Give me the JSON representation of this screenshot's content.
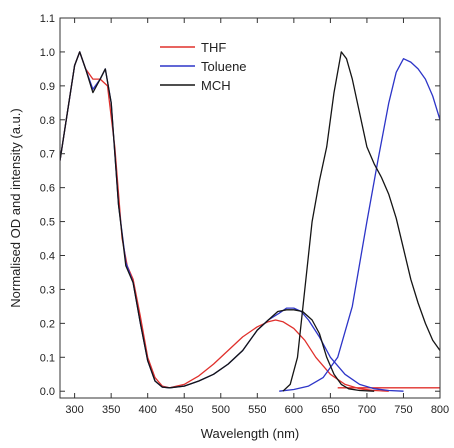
{
  "chart_data": {
    "type": "line",
    "title": "",
    "xlabel": "Wavelength (nm)",
    "ylabel": "Normalised OD and intensity (a.u.)",
    "xlim": [
      280,
      800
    ],
    "ylim": [
      -0.02,
      1.1
    ],
    "xticks": [
      300,
      350,
      400,
      450,
      500,
      550,
      600,
      650,
      700,
      750,
      800
    ],
    "xtick_labels": [
      "300",
      "350",
      "400",
      "450",
      "500",
      "550",
      "600",
      "650",
      "700",
      "750",
      "800"
    ],
    "yticks": [
      0.0,
      0.1,
      0.2,
      0.3,
      0.4,
      0.5,
      0.6,
      0.7,
      0.8,
      0.9,
      1.0,
      1.1
    ],
    "ytick_labels": [
      "0.0",
      "0.1",
      "0.2",
      "0.3",
      "0.4",
      "0.5",
      "0.6",
      "0.7",
      "0.8",
      "0.9",
      "1.0",
      "1.1"
    ],
    "grid": false,
    "legend_position": "top-center",
    "series": [
      {
        "name": "THF",
        "color": "#e0302c",
        "segments": [
          [
            [
              280,
              0.68
            ],
            [
              290,
              0.82
            ],
            [
              300,
              0.96
            ],
            [
              307,
              1.0
            ],
            [
              315,
              0.95
            ],
            [
              325,
              0.92
            ],
            [
              335,
              0.92
            ],
            [
              345,
              0.9
            ],
            [
              355,
              0.72
            ],
            [
              365,
              0.45
            ],
            [
              372,
              0.37
            ],
            [
              380,
              0.33
            ],
            [
              390,
              0.22
            ],
            [
              400,
              0.1
            ],
            [
              410,
              0.04
            ],
            [
              420,
              0.015
            ],
            [
              430,
              0.01
            ],
            [
              450,
              0.02
            ],
            [
              470,
              0.045
            ],
            [
              490,
              0.08
            ],
            [
              510,
              0.12
            ],
            [
              530,
              0.16
            ],
            [
              550,
              0.19
            ],
            [
              565,
              0.205
            ],
            [
              575,
              0.21
            ],
            [
              585,
              0.205
            ],
            [
              600,
              0.185
            ],
            [
              615,
              0.15
            ],
            [
              630,
              0.1
            ],
            [
              650,
              0.05
            ],
            [
              670,
              0.02
            ],
            [
              690,
              0.007
            ],
            [
              710,
              0.002
            ],
            [
              730,
              0.0
            ]
          ],
          [
            [
              660,
              0.01
            ],
            [
              700,
              0.01
            ],
            [
              750,
              0.01
            ],
            [
              800,
              0.01
            ]
          ]
        ]
      },
      {
        "name": "Toluene",
        "color": "#2d35c8",
        "segments": [
          [
            [
              280,
              0.68
            ],
            [
              290,
              0.82
            ],
            [
              300,
              0.96
            ],
            [
              307,
              1.0
            ],
            [
              315,
              0.95
            ],
            [
              325,
              0.89
            ],
            [
              335,
              0.92
            ],
            [
              342,
              0.95
            ],
            [
              350,
              0.85
            ],
            [
              360,
              0.55
            ],
            [
              370,
              0.38
            ],
            [
              380,
              0.32
            ],
            [
              390,
              0.2
            ],
            [
              400,
              0.09
            ],
            [
              410,
              0.03
            ],
            [
              420,
              0.012
            ],
            [
              430,
              0.01
            ],
            [
              450,
              0.015
            ],
            [
              470,
              0.03
            ],
            [
              490,
              0.05
            ],
            [
              510,
              0.08
            ],
            [
              530,
              0.12
            ],
            [
              550,
              0.18
            ],
            [
              565,
              0.21
            ],
            [
              580,
              0.23
            ],
            [
              590,
              0.245
            ],
            [
              600,
              0.245
            ],
            [
              610,
              0.235
            ],
            [
              620,
              0.21
            ],
            [
              635,
              0.16
            ],
            [
              650,
              0.1
            ],
            [
              670,
              0.05
            ],
            [
              690,
              0.02
            ],
            [
              710,
              0.007
            ],
            [
              730,
              0.002
            ],
            [
              750,
              0.0
            ]
          ],
          [
            [
              580,
              0.0
            ],
            [
              600,
              0.005
            ],
            [
              620,
              0.015
            ],
            [
              640,
              0.04
            ],
            [
              660,
              0.1
            ],
            [
              680,
              0.25
            ],
            [
              700,
              0.5
            ],
            [
              715,
              0.68
            ],
            [
              730,
              0.85
            ],
            [
              740,
              0.94
            ],
            [
              750,
              0.98
            ],
            [
              760,
              0.97
            ],
            [
              770,
              0.95
            ],
            [
              780,
              0.92
            ],
            [
              790,
              0.87
            ],
            [
              800,
              0.8
            ]
          ]
        ]
      },
      {
        "name": "MCH",
        "color": "#151515",
        "segments": [
          [
            [
              280,
              0.68
            ],
            [
              290,
              0.82
            ],
            [
              300,
              0.96
            ],
            [
              307,
              1.0
            ],
            [
              315,
              0.95
            ],
            [
              325,
              0.88
            ],
            [
              335,
              0.92
            ],
            [
              342,
              0.95
            ],
            [
              350,
              0.85
            ],
            [
              360,
              0.55
            ],
            [
              370,
              0.37
            ],
            [
              380,
              0.32
            ],
            [
              390,
              0.2
            ],
            [
              400,
              0.09
            ],
            [
              410,
              0.03
            ],
            [
              420,
              0.012
            ],
            [
              430,
              0.01
            ],
            [
              450,
              0.015
            ],
            [
              470,
              0.03
            ],
            [
              490,
              0.05
            ],
            [
              510,
              0.08
            ],
            [
              530,
              0.12
            ],
            [
              550,
              0.18
            ],
            [
              565,
              0.21
            ],
            [
              578,
              0.235
            ],
            [
              590,
              0.24
            ],
            [
              600,
              0.24
            ],
            [
              612,
              0.235
            ],
            [
              625,
              0.21
            ],
            [
              635,
              0.17
            ],
            [
              645,
              0.1
            ],
            [
              655,
              0.05
            ],
            [
              665,
              0.02
            ],
            [
              675,
              0.007
            ],
            [
              690,
              0.002
            ],
            [
              710,
              0.0
            ]
          ],
          [
            [
              585,
              0.0
            ],
            [
              595,
              0.02
            ],
            [
              605,
              0.1
            ],
            [
              615,
              0.3
            ],
            [
              625,
              0.5
            ],
            [
              635,
              0.62
            ],
            [
              645,
              0.72
            ],
            [
              655,
              0.88
            ],
            [
              665,
              1.0
            ],
            [
              672,
              0.98
            ],
            [
              680,
              0.92
            ],
            [
              690,
              0.82
            ],
            [
              700,
              0.72
            ],
            [
              710,
              0.67
            ],
            [
              720,
              0.63
            ],
            [
              730,
              0.58
            ],
            [
              740,
              0.51
            ],
            [
              750,
              0.42
            ],
            [
              760,
              0.33
            ],
            [
              770,
              0.26
            ],
            [
              780,
              0.2
            ],
            [
              790,
              0.15
            ],
            [
              800,
              0.12
            ]
          ]
        ]
      }
    ]
  }
}
